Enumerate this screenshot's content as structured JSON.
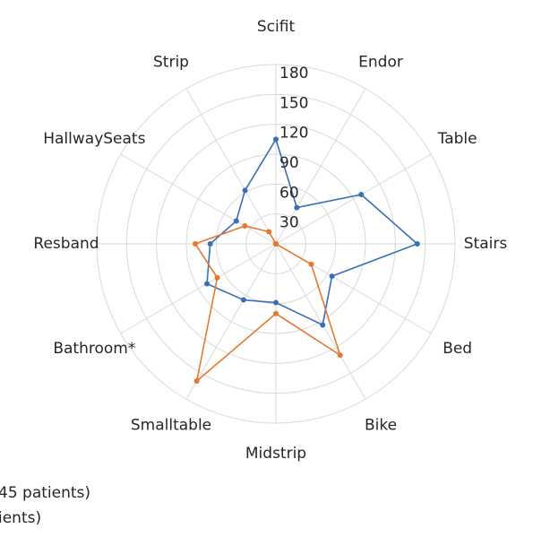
{
  "chart_data": {
    "type": "radar",
    "categories": [
      "Scifit",
      "Endor",
      "Table",
      "Stairs",
      "Bed",
      "Bike",
      "Midstrip",
      "Smalltable",
      "Bathroom*",
      "Resband",
      "HallwaySeats",
      "Strip"
    ],
    "series": [
      {
        "name": "45 patients)",
        "color": "#3a6fb5",
        "values": [
          105,
          42,
          99,
          142,
          65,
          94,
          59,
          65,
          80,
          66,
          46,
          62
        ]
      },
      {
        "name": "ients)",
        "color": "#e6782e",
        "values": [
          0,
          0,
          0,
          0,
          41,
          129,
          70,
          159,
          68,
          81,
          36,
          14
        ]
      }
    ],
    "rlim": [
      0,
      180
    ],
    "rticks": [
      30,
      60,
      90,
      120,
      150,
      180
    ],
    "grid": true
  }
}
